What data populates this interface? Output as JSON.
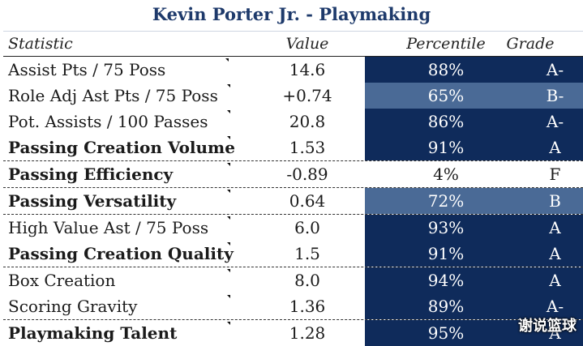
{
  "title": "Kevin Porter Jr. - Playmaking",
  "headers": {
    "statistic": "Statistic",
    "value": "Value",
    "percentile": "Percentile",
    "grade": "Grade"
  },
  "rows": [
    {
      "stat": "Assist Pts / 75 Poss",
      "value": "14.6",
      "percentile": "88%",
      "grade": "A-"
    },
    {
      "stat": "Role Adj Ast Pts / 75 Poss",
      "value": "+0.74",
      "percentile": "65%",
      "grade": "B-"
    },
    {
      "stat": "Pot. Assists / 100 Passes",
      "value": "20.8",
      "percentile": "86%",
      "grade": "A-"
    },
    {
      "stat": "Passing Creation Volume",
      "value": "1.53",
      "percentile": "91%",
      "grade": "A"
    },
    {
      "stat": "Passing Efficiency",
      "value": "-0.89",
      "percentile": "4%",
      "grade": "F"
    },
    {
      "stat": "Passing Versatility",
      "value": "0.64",
      "percentile": "72%",
      "grade": "B"
    },
    {
      "stat": "High Value Ast / 75 Poss",
      "value": "6.0",
      "percentile": "93%",
      "grade": "A"
    },
    {
      "stat": "Passing Creation Quality",
      "value": "1.5",
      "percentile": "91%",
      "grade": "A"
    },
    {
      "stat": "Box Creation",
      "value": "8.0",
      "percentile": "94%",
      "grade": "A"
    },
    {
      "stat": "Scoring Gravity",
      "value": "1.36",
      "percentile": "89%",
      "grade": "A-"
    },
    {
      "stat": "Playmaking Talent",
      "value": "1.28",
      "percentile": "95%",
      "grade": "A"
    }
  ],
  "watermark": "谢说篮球",
  "colors": {
    "dark_shade": "#0f2b5b",
    "mid_shade": "#4a6a96",
    "title": "#1e3a6b"
  }
}
